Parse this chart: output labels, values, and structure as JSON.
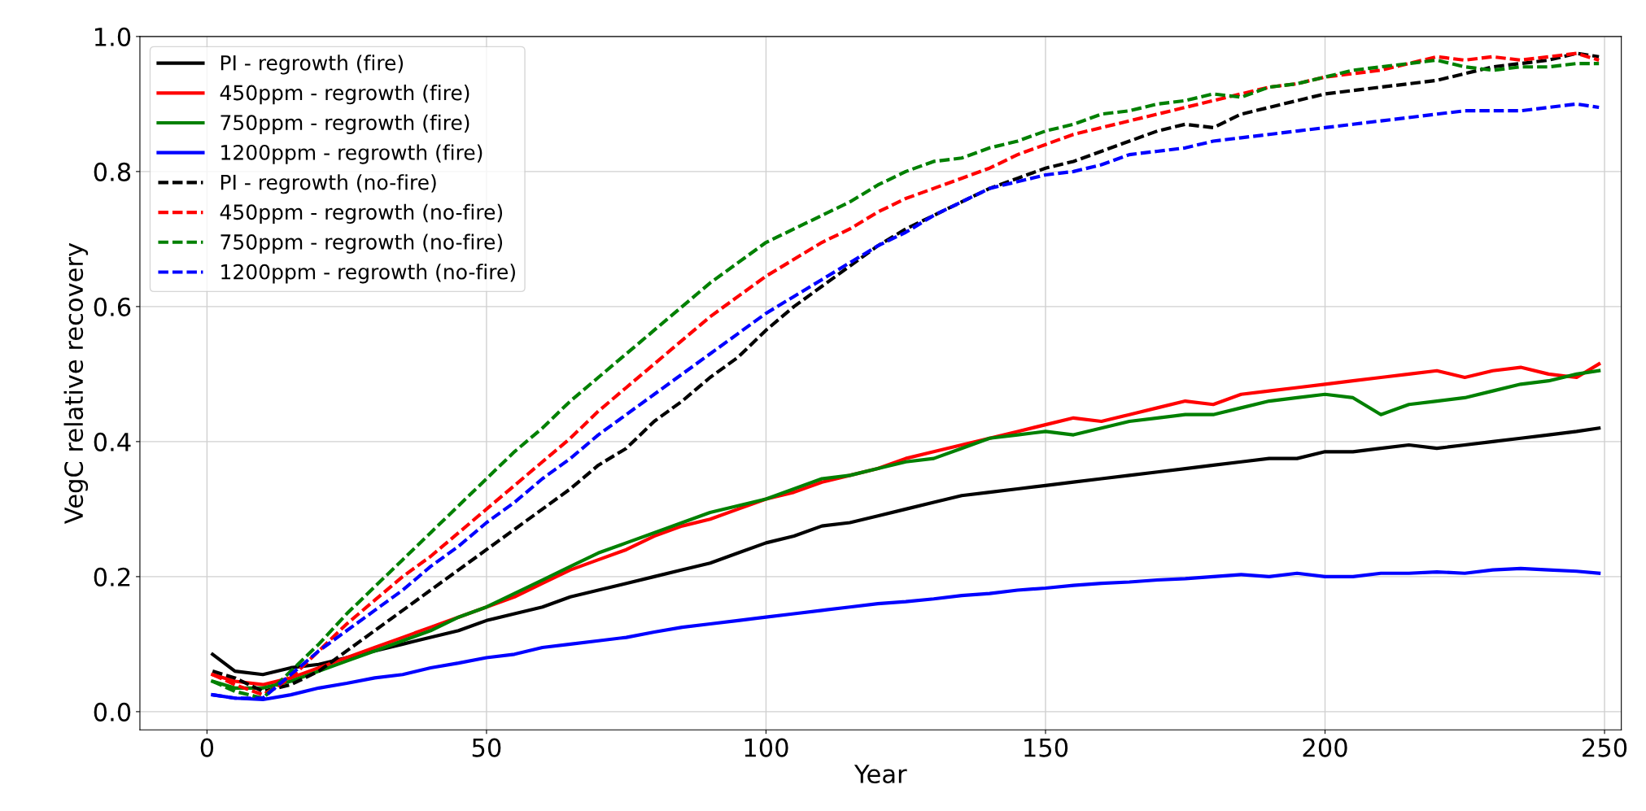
{
  "chart_data": {
    "type": "line",
    "xlabel": "Year",
    "ylabel": "VegC relative recovery",
    "x": [
      1,
      5,
      10,
      15,
      20,
      25,
      30,
      35,
      40,
      45,
      50,
      55,
      60,
      65,
      70,
      75,
      80,
      85,
      90,
      95,
      100,
      105,
      110,
      115,
      120,
      125,
      130,
      135,
      140,
      145,
      150,
      155,
      160,
      165,
      170,
      175,
      180,
      185,
      190,
      195,
      200,
      205,
      210,
      215,
      220,
      225,
      230,
      235,
      240,
      245,
      249
    ],
    "xlim": [
      -12,
      253
    ],
    "xticks": [
      0,
      50,
      100,
      150,
      200,
      250
    ],
    "ylim": [
      -0.027,
      1.0
    ],
    "yticks": [
      {
        "value": 0,
        "label": "0.0"
      },
      0.2,
      0.4,
      0.6,
      0.8,
      {
        "value": 1,
        "label": "1.0"
      }
    ],
    "grid": true,
    "legend": "top left",
    "series": [
      {
        "name": "PI - regrowth (fire)",
        "color": "#000000",
        "line_style": "solid",
        "values": [
          0.085,
          0.06,
          0.055,
          0.065,
          0.07,
          0.08,
          0.09,
          0.1,
          0.11,
          0.12,
          0.135,
          0.145,
          0.155,
          0.17,
          0.18,
          0.19,
          0.2,
          0.21,
          0.22,
          0.235,
          0.25,
          0.26,
          0.275,
          0.28,
          0.29,
          0.3,
          0.31,
          0.32,
          0.325,
          0.33,
          0.335,
          0.34,
          0.345,
          0.35,
          0.355,
          0.36,
          0.365,
          0.37,
          0.375,
          0.375,
          0.385,
          0.385,
          0.39,
          0.395,
          0.39,
          0.395,
          0.4,
          0.405,
          0.41,
          0.415,
          0.42
        ]
      },
      {
        "name": "450ppm - regrowth (fire)",
        "color": "#ff0000",
        "line_style": "solid",
        "values": [
          0.055,
          0.045,
          0.04,
          0.05,
          0.065,
          0.08,
          0.095,
          0.11,
          0.125,
          0.14,
          0.155,
          0.17,
          0.19,
          0.21,
          0.225,
          0.24,
          0.26,
          0.275,
          0.285,
          0.3,
          0.315,
          0.325,
          0.34,
          0.35,
          0.36,
          0.375,
          0.385,
          0.395,
          0.405,
          0.415,
          0.425,
          0.435,
          0.43,
          0.44,
          0.45,
          0.46,
          0.455,
          0.47,
          0.475,
          0.48,
          0.485,
          0.49,
          0.495,
          0.5,
          0.505,
          0.495,
          0.505,
          0.51,
          0.5,
          0.495,
          0.515
        ]
      },
      {
        "name": "750ppm - regrowth (fire)",
        "color": "#008000",
        "line_style": "solid",
        "values": [
          0.045,
          0.035,
          0.035,
          0.045,
          0.06,
          0.075,
          0.09,
          0.105,
          0.12,
          0.14,
          0.155,
          0.175,
          0.195,
          0.215,
          0.235,
          0.25,
          0.265,
          0.28,
          0.295,
          0.305,
          0.315,
          0.33,
          0.345,
          0.35,
          0.36,
          0.37,
          0.375,
          0.39,
          0.405,
          0.41,
          0.415,
          0.41,
          0.42,
          0.43,
          0.435,
          0.44,
          0.44,
          0.45,
          0.46,
          0.465,
          0.47,
          0.465,
          0.44,
          0.455,
          0.46,
          0.465,
          0.475,
          0.485,
          0.49,
          0.5,
          0.505
        ]
      },
      {
        "name": "1200ppm - regrowth (fire)",
        "color": "#0000ff",
        "line_style": "solid",
        "values": [
          0.025,
          0.02,
          0.018,
          0.025,
          0.035,
          0.042,
          0.05,
          0.055,
          0.065,
          0.072,
          0.08,
          0.085,
          0.095,
          0.1,
          0.105,
          0.11,
          0.118,
          0.125,
          0.13,
          0.135,
          0.14,
          0.145,
          0.15,
          0.155,
          0.16,
          0.163,
          0.167,
          0.172,
          0.175,
          0.18,
          0.183,
          0.187,
          0.19,
          0.192,
          0.195,
          0.197,
          0.2,
          0.203,
          0.2,
          0.205,
          0.2,
          0.2,
          0.205,
          0.205,
          0.207,
          0.205,
          0.21,
          0.212,
          0.21,
          0.208,
          0.205
        ]
      },
      {
        "name": "PI - regrowth (no-fire)",
        "color": "#000000",
        "line_style": "dashed",
        "values": [
          0.06,
          0.05,
          0.03,
          0.04,
          0.06,
          0.09,
          0.12,
          0.15,
          0.18,
          0.21,
          0.24,
          0.27,
          0.3,
          0.33,
          0.365,
          0.39,
          0.43,
          0.46,
          0.495,
          0.525,
          0.565,
          0.6,
          0.63,
          0.66,
          0.69,
          0.715,
          0.735,
          0.755,
          0.775,
          0.79,
          0.805,
          0.815,
          0.83,
          0.845,
          0.86,
          0.87,
          0.865,
          0.885,
          0.895,
          0.905,
          0.915,
          0.92,
          0.925,
          0.93,
          0.935,
          0.945,
          0.955,
          0.96,
          0.965,
          0.975,
          0.97
        ]
      },
      {
        "name": "450ppm - regrowth (no-fire)",
        "color": "#ff0000",
        "line_style": "dashed",
        "values": [
          0.055,
          0.04,
          0.025,
          0.05,
          0.09,
          0.13,
          0.165,
          0.2,
          0.23,
          0.265,
          0.3,
          0.335,
          0.37,
          0.405,
          0.445,
          0.48,
          0.515,
          0.55,
          0.585,
          0.615,
          0.645,
          0.67,
          0.695,
          0.715,
          0.74,
          0.76,
          0.775,
          0.79,
          0.805,
          0.825,
          0.84,
          0.855,
          0.865,
          0.875,
          0.885,
          0.895,
          0.905,
          0.915,
          0.925,
          0.93,
          0.94,
          0.945,
          0.95,
          0.96,
          0.97,
          0.965,
          0.97,
          0.965,
          0.97,
          0.975,
          0.965
        ]
      },
      {
        "name": "750ppm - regrowth (no-fire)",
        "color": "#008000",
        "line_style": "dashed",
        "values": [
          0.045,
          0.03,
          0.02,
          0.06,
          0.1,
          0.145,
          0.185,
          0.225,
          0.265,
          0.305,
          0.345,
          0.385,
          0.42,
          0.46,
          0.495,
          0.53,
          0.565,
          0.6,
          0.635,
          0.665,
          0.695,
          0.715,
          0.735,
          0.755,
          0.78,
          0.8,
          0.815,
          0.82,
          0.835,
          0.845,
          0.86,
          0.87,
          0.885,
          0.89,
          0.9,
          0.905,
          0.915,
          0.91,
          0.925,
          0.93,
          0.94,
          0.95,
          0.955,
          0.96,
          0.965,
          0.955,
          0.95,
          0.955,
          0.955,
          0.96,
          0.96
        ]
      },
      {
        "name": "1200ppm - regrowth (no-fire)",
        "color": "#0000ff",
        "line_style": "dashed",
        "values": [
          0.025,
          0.02,
          0.02,
          0.055,
          0.09,
          0.12,
          0.15,
          0.18,
          0.215,
          0.245,
          0.28,
          0.31,
          0.345,
          0.375,
          0.41,
          0.44,
          0.47,
          0.5,
          0.53,
          0.56,
          0.59,
          0.615,
          0.64,
          0.665,
          0.69,
          0.71,
          0.735,
          0.755,
          0.775,
          0.785,
          0.795,
          0.8,
          0.81,
          0.825,
          0.83,
          0.835,
          0.845,
          0.85,
          0.855,
          0.86,
          0.865,
          0.87,
          0.875,
          0.88,
          0.885,
          0.89,
          0.89,
          0.89,
          0.895,
          0.9,
          0.895
        ]
      }
    ]
  }
}
